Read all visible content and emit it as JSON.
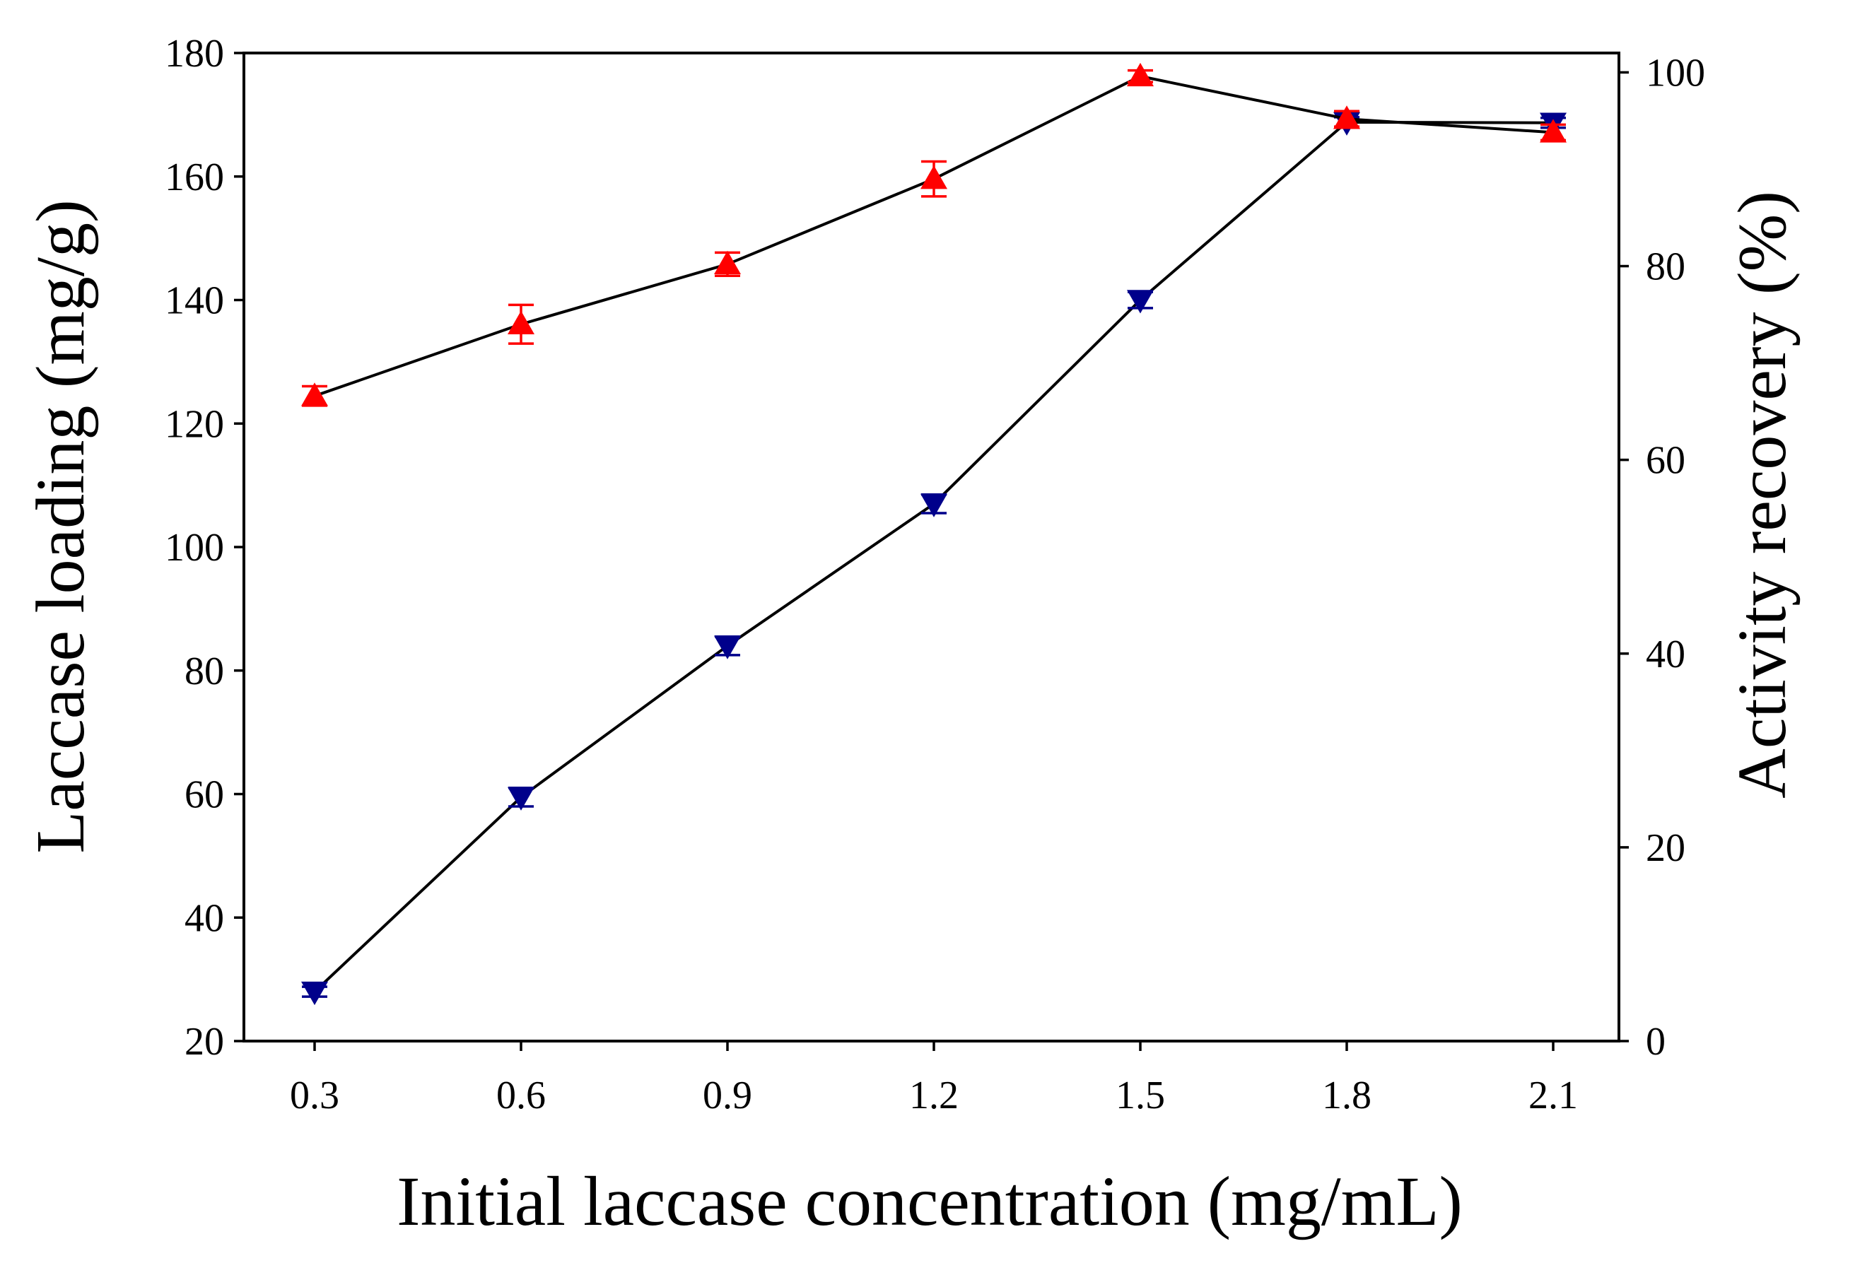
{
  "chart_data": {
    "type": "line",
    "x": [
      0.3,
      0.6,
      0.9,
      1.2,
      1.5,
      1.8,
      2.1
    ],
    "x_tick_labels": [
      "0.3",
      "0.6",
      "0.9",
      "1.2",
      "1.5",
      "1.8",
      "2.1"
    ],
    "xlabel": "Initial laccase concentration (mg/mL)",
    "ylabel": "Laccase loading (mg/g)",
    "ylim": [
      20,
      180
    ],
    "y_ticks": [
      20,
      40,
      60,
      80,
      100,
      120,
      140,
      160,
      180
    ],
    "y_tick_labels": [
      "20",
      "40",
      "60",
      "80",
      "100",
      "120",
      "140",
      "160",
      "180"
    ],
    "y2label": "Activity recovery (%)",
    "y2lim": [
      0,
      102
    ],
    "y2_ticks": [
      0,
      20,
      40,
      60,
      80,
      100
    ],
    "y2_tick_labels": [
      "0",
      "20",
      "40",
      "60",
      "80",
      "100"
    ],
    "grid": false,
    "legend": "none",
    "series": [
      {
        "name": "Laccase loading",
        "axis": "left",
        "marker": "triangle-down",
        "color": "#00008B",
        "line_color": "#000000",
        "values": [
          28,
          59.5,
          84,
          107,
          140,
          168.8,
          168.7
        ],
        "errors": [
          0.8,
          1.5,
          1.5,
          1.5,
          1.3,
          0.8,
          0.8
        ]
      },
      {
        "name": "Activity recovery",
        "axis": "right",
        "marker": "triangle-up",
        "color": "#FF0000",
        "line_color": "#000000",
        "values": [
          66.6,
          74,
          80.2,
          89,
          99.6,
          95.2,
          93.8
        ],
        "errors": [
          1.0,
          2.0,
          1.2,
          1.8,
          0.6,
          0.8,
          0.8
        ]
      }
    ]
  }
}
